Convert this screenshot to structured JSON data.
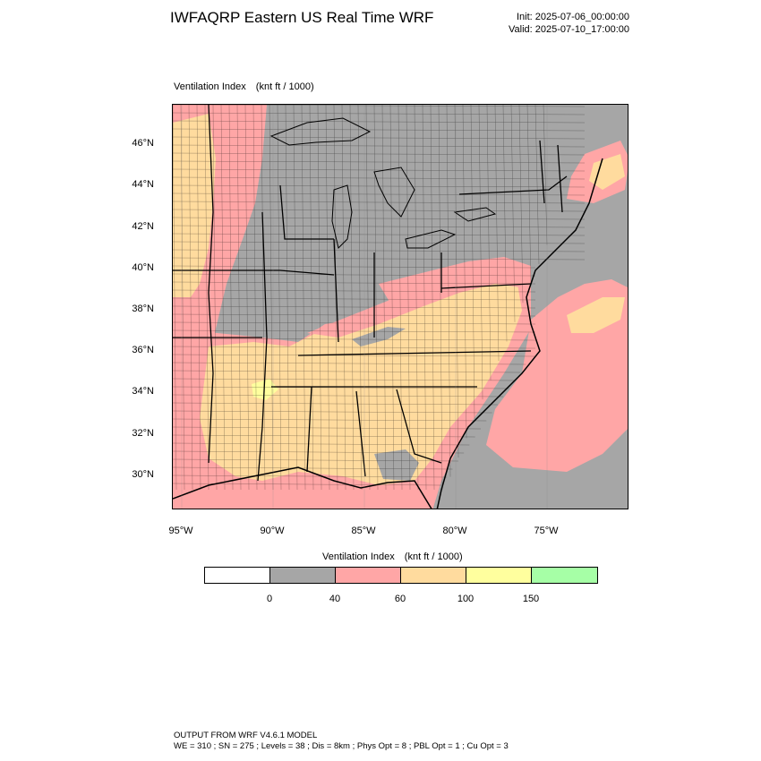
{
  "header": {
    "title": "IWFAQRP Eastern US Real Time WRF",
    "init": "Init: 2025-07-06_00:00:00",
    "valid": "Valid: 2025-07-10_17:00:00"
  },
  "map": {
    "field_name": "Ventilation Index",
    "units": "(knt ft / 1000)",
    "lat_labels": [
      "46°N",
      "44°N",
      "42°N",
      "40°N",
      "38°N",
      "36°N",
      "34°N",
      "32°N",
      "30°N"
    ],
    "lon_labels": [
      "95°W",
      "90°W",
      "85°W",
      "80°W",
      "75°W"
    ],
    "colors": {
      "ocean_gray": "#a6a6a6",
      "land_gray": "#a6a6a6",
      "pink": "#ffa6a6",
      "tan": "#ffdb9e",
      "yellow": "#ffff9e",
      "green": "#a6ffa6",
      "border": "#000000"
    }
  },
  "colorbar": {
    "title": "Ventilation Index",
    "units": "(knt ft / 1000)",
    "bins": [
      {
        "color": "#ffffff"
      },
      {
        "color": "#a6a6a6"
      },
      {
        "color": "#ffa6a6"
      },
      {
        "color": "#ffdb9e"
      },
      {
        "color": "#ffff9e"
      },
      {
        "color": "#a6ffa6"
      }
    ],
    "ticks": [
      "0",
      "40",
      "60",
      "100",
      "150"
    ]
  },
  "footer": {
    "line1": "OUTPUT FROM WRF V4.6.1 MODEL",
    "line2": "WE = 310 ; SN = 275 ; Levels = 38 ; Dis = 8km ; Phys Opt = 8 ; PBL Opt = 1 ; Cu Opt = 3"
  }
}
